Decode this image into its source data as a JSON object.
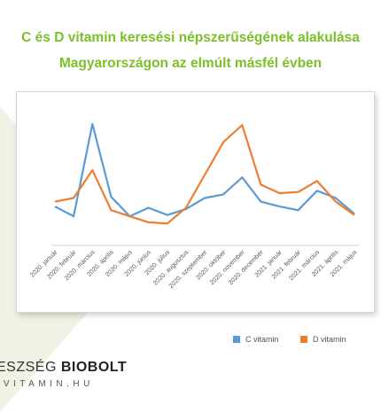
{
  "page": {
    "title_line1": "C és D vitamin keresési népszerűségének alakulása",
    "title_line2": "Magyarországon az elmúlt másfél évben"
  },
  "colors": {
    "title": "#7cbf2a",
    "c_vitamin": "#5b9bd5",
    "d_vitamin": "#ed7d31",
    "background_shape": "#eef3e3"
  },
  "logo": {
    "top_light": "ESZSÉG ",
    "top_bold": "BIOBOLT",
    "bottom": "-VITAMIN.HU"
  },
  "chart_data": {
    "type": "line",
    "categories": [
      "2020. január",
      "2020. február",
      "2020. március",
      "2020. április",
      "2020. május",
      "2020. június",
      "2020. július",
      "2020. augusztus",
      "2020. szeptember",
      "2020. október",
      "2020. november",
      "2020. december",
      "2021. január",
      "2021. február",
      "2021. március",
      "2021. április",
      "2021. május"
    ],
    "series": [
      {
        "name": "C vitamin",
        "color": "#5b9bd5",
        "values": [
          32,
          24,
          100,
          40,
          24,
          31,
          25,
          30,
          39,
          42,
          56,
          36,
          32,
          29,
          45,
          39,
          26
        ]
      },
      {
        "name": "D vitamin",
        "color": "#ed7d31",
        "values": [
          36,
          39,
          62,
          29,
          24,
          19,
          18,
          31,
          58,
          85,
          99,
          50,
          43,
          44,
          53,
          36,
          25
        ]
      }
    ],
    "ylim": [
      0,
      105
    ],
    "xlabel": "",
    "ylabel": "",
    "legend_position": "bottom-right",
    "grid": false
  }
}
